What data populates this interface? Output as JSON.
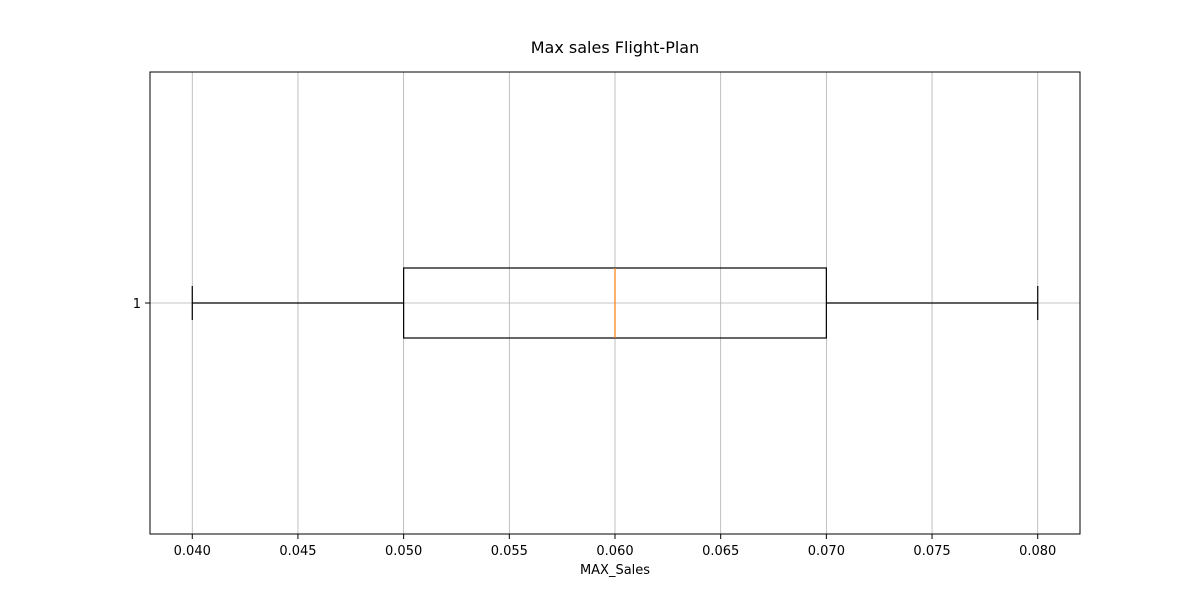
{
  "chart_data": {
    "type": "boxplot",
    "orientation": "horizontal",
    "title": "Max sales Flight-Plan",
    "xlabel": "MAX_Sales",
    "ylabel": "",
    "xlim": [
      0.038,
      0.082
    ],
    "grid": true,
    "x_ticks": [
      "0.040",
      "0.045",
      "0.050",
      "0.055",
      "0.060",
      "0.065",
      "0.070",
      "0.075",
      "0.080"
    ],
    "y_ticks": [
      "1"
    ],
    "boxes": [
      {
        "label": "1",
        "whisker_low": 0.04,
        "q1": 0.05,
        "median": 0.06,
        "q3": 0.07,
        "whisker_high": 0.08
      }
    ],
    "colors": {
      "box": "#000000",
      "median": "#ff7f0e",
      "grid": "#b0b0b0"
    }
  }
}
